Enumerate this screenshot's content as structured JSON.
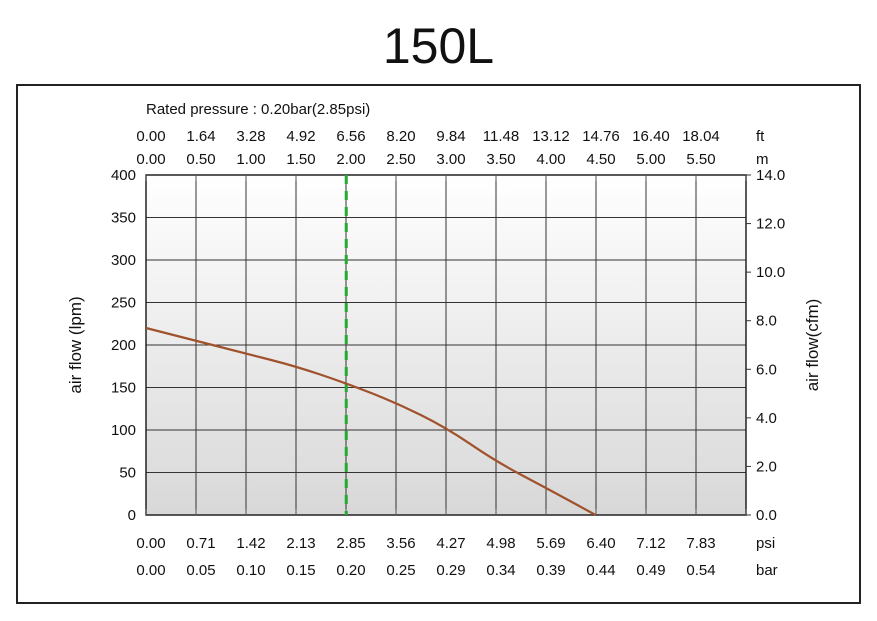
{
  "chart_data": {
    "type": "line",
    "title": "150L",
    "subtitle": "Rated pressure : 0.20bar(2.85psi)",
    "ylabel_left": "air flow (lpm)",
    "ylabel_right": "air flow(cfm)",
    "y_left": {
      "ticks": [
        "0",
        "50",
        "100",
        "150",
        "200",
        "250",
        "300",
        "350",
        "400"
      ],
      "range": [
        0,
        400
      ]
    },
    "y_right": {
      "ticks": [
        "0.0",
        "2.0",
        "4.0",
        "6.0",
        "8.0",
        "10.0",
        "12.0",
        "14.0"
      ],
      "range": [
        0,
        14
      ]
    },
    "x_psi": {
      "unit": "psi",
      "ticks": [
        "0.00",
        "0.71",
        "1.42",
        "2.13",
        "2.85",
        "3.56",
        "4.27",
        "4.98",
        "5.69",
        "6.40",
        "7.12",
        "7.83"
      ]
    },
    "x_bar": {
      "unit": "bar",
      "ticks": [
        "0.00",
        "0.05",
        "0.10",
        "0.15",
        "0.20",
        "0.25",
        "0.29",
        "0.34",
        "0.39",
        "0.44",
        "0.49",
        "0.54"
      ]
    },
    "x_ft": {
      "unit": "ft",
      "ticks": [
        "0.00",
        "1.64",
        "3.28",
        "4.92",
        "6.56",
        "8.20",
        "9.84",
        "11.48",
        "13.12",
        "14.76",
        "16.40",
        "18.04"
      ]
    },
    "x_m": {
      "unit": "m",
      "ticks": [
        "0.00",
        "0.50",
        "1.00",
        "1.50",
        "2.00",
        "2.50",
        "3.00",
        "3.50",
        "4.00",
        "4.50",
        "5.00",
        "5.50"
      ]
    },
    "x_range_psi": [
      0,
      8.54
    ],
    "series": [
      {
        "color": "#a0522d",
        "x": [
          0.0,
          0.71,
          1.42,
          2.13,
          2.85,
          3.56,
          4.27,
          4.98,
          5.69,
          6.4
        ],
        "y": [
          220,
          205,
          190,
          175,
          155,
          132,
          103,
          63,
          32,
          0
        ]
      }
    ],
    "rated_line": {
      "x": 2.85,
      "color": "#22aa33"
    },
    "grid": true
  }
}
